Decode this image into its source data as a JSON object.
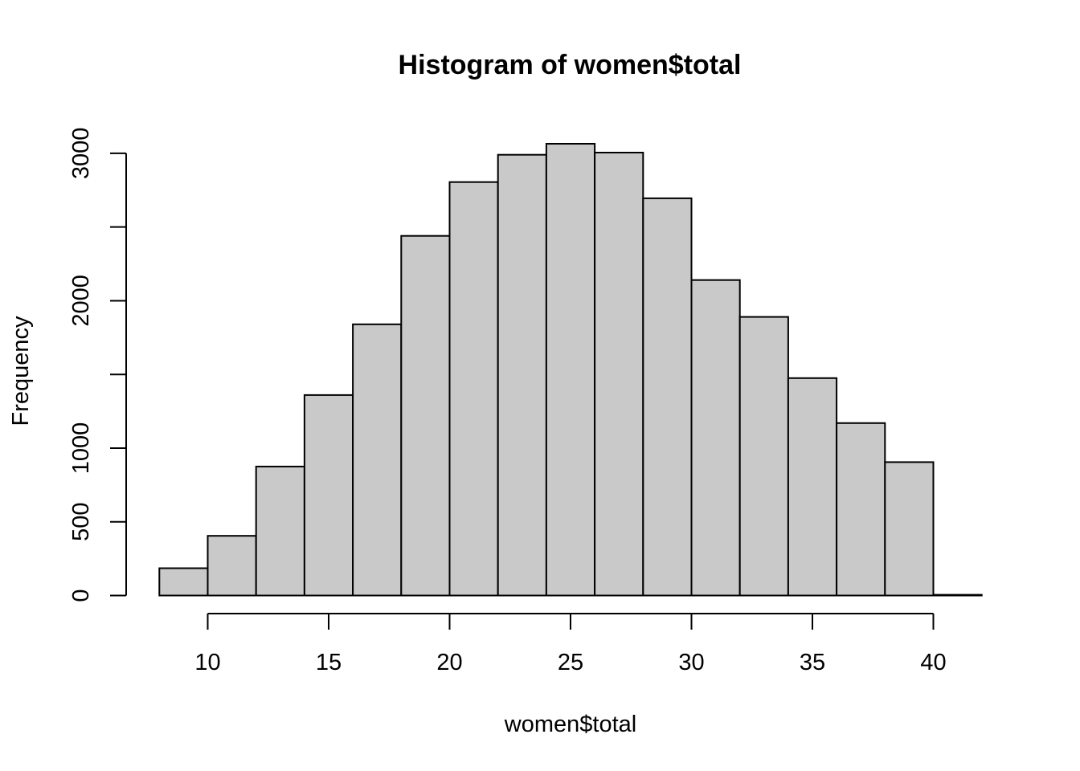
{
  "chart_data": {
    "type": "bar",
    "title": "Histogram of women$total",
    "xlabel": "women$total",
    "ylabel": "Frequency",
    "bin_edges": [
      8,
      10,
      12,
      14,
      16,
      18,
      20,
      22,
      24,
      26,
      28,
      30,
      32,
      34,
      36,
      38,
      40,
      42
    ],
    "values": [
      185,
      405,
      875,
      1360,
      1840,
      2440,
      2805,
      2990,
      3065,
      3005,
      2695,
      2140,
      1890,
      1475,
      1170,
      905,
      5
    ],
    "xlim": [
      8,
      42
    ],
    "ylim": [
      0,
      3150
    ],
    "x_ticks": [
      10,
      15,
      20,
      25,
      30,
      35,
      40
    ],
    "y_ticks": [
      0,
      500,
      1000,
      1500,
      2000,
      2500,
      3000
    ],
    "y_tick_labels": [
      "0",
      "500",
      "1000",
      "",
      "2000",
      "",
      "3000"
    ],
    "bar_color": "#c9c9c9",
    "grid": false,
    "legend": "none"
  }
}
